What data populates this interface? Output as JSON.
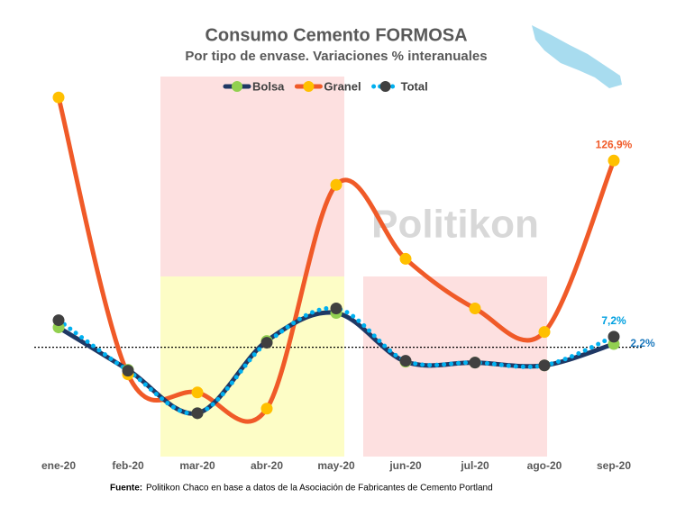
{
  "chart_data": {
    "type": "line",
    "title": "Consumo Cemento FORMOSA",
    "subtitle": "Por tipo de envase. Variaciones % interanuales",
    "watermark": "Politikon",
    "source_label": "Fuente:",
    "source": "Politikon Chaco en base a datos de la Asociación de Fabricantes de Cemento Portland",
    "categories": [
      "ene-20",
      "feb-20",
      "mar-20",
      "abr-20",
      "may-20",
      "jun-20",
      "jul-20",
      "ago-20",
      "sep-20"
    ],
    "ylim": [
      -70,
      184
    ],
    "reference_line": 0,
    "series": [
      {
        "name": "Bolsa",
        "color": "#1f3864",
        "marker_color": "#92d050",
        "line_style": "solid",
        "values": [
          13.5,
          -15.3,
          -44.8,
          4.3,
          23.3,
          -9.8,
          -10.4,
          -12.3,
          2.2
        ],
        "value_labels": [
          null,
          null,
          null,
          null,
          null,
          null,
          null,
          null,
          "2,2%"
        ],
        "label_color": "#1f7bbf"
      },
      {
        "name": "Granel",
        "color": "#f05a28",
        "marker_color": "#ffc000",
        "line_style": "solid",
        "values": [
          169.8,
          -18.4,
          -30.7,
          -41.7,
          110.4,
          60.1,
          26.4,
          10.4,
          126.9
        ],
        "value_labels": [
          null,
          null,
          null,
          null,
          null,
          null,
          null,
          null,
          "126,9%"
        ],
        "label_color": "#f05a28"
      },
      {
        "name": "Total",
        "color": "#00b0f0",
        "marker_color": "#404040",
        "line_style": "dotted",
        "values": [
          18.4,
          -15.9,
          -44.8,
          3.1,
          26.4,
          -9.2,
          -10.4,
          -12.3,
          7.2
        ],
        "value_labels": [
          null,
          null,
          null,
          null,
          null,
          null,
          null,
          null,
          "7,2%"
        ],
        "label_color": "#00a0e0"
      }
    ]
  }
}
